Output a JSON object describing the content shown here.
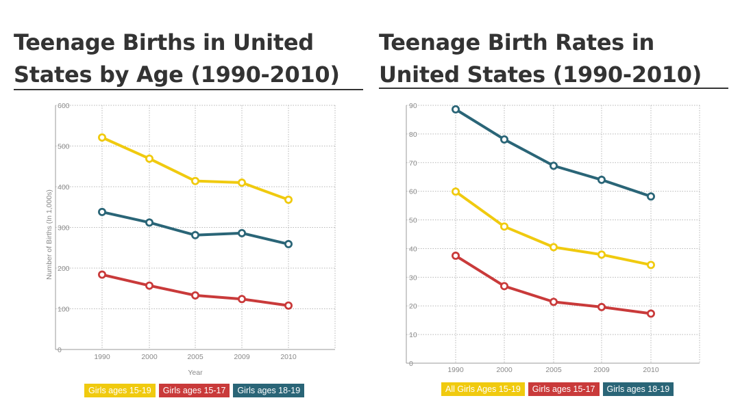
{
  "colors": {
    "yellow": "#F0CA0F",
    "red": "#C93A3A",
    "teal": "#2A6577"
  },
  "chart_data": [
    {
      "type": "line",
      "title": "Teenage Births in United States by Age (1990-2010)",
      "xlabel": "Year",
      "ylabel": "Number of Births (In 1,000s)",
      "categories": [
        "1990",
        "2000",
        "2005",
        "2009",
        "2010"
      ],
      "y_ticks": [
        "0",
        "100",
        "200",
        "300",
        "400",
        "500",
        "600"
      ],
      "ylim": [
        0,
        600
      ],
      "grid": true,
      "legend_position": "bottom",
      "series": [
        {
          "name": "Girls ages 15-19",
          "color": "#F0CA0F",
          "values": [
            521,
            469,
            414,
            410,
            368
          ]
        },
        {
          "name": "Girls ages 15-17",
          "color": "#C93A3A",
          "values": [
            184,
            157,
            133,
            124,
            108
          ]
        },
        {
          "name": "Girls ages 18-19",
          "color": "#2A6577",
          "values": [
            338,
            312,
            281,
            286,
            259
          ]
        }
      ]
    },
    {
      "type": "line",
      "title": "Teenage Birth Rates in United States (1990-2010)",
      "xlabel": "",
      "ylabel": "",
      "categories": [
        "1990",
        "2000",
        "2005",
        "2009",
        "2010"
      ],
      "y_ticks": [
        "0",
        "10",
        "20",
        "30",
        "40",
        "50",
        "60",
        "70",
        "80",
        "90"
      ],
      "ylim": [
        0,
        90
      ],
      "grid": true,
      "legend_position": "bottom",
      "series": [
        {
          "name": "All Girls Ages 15-19",
          "color": "#F0CA0F",
          "values": [
            59.9,
            47.7,
            40.5,
            37.9,
            34.3
          ]
        },
        {
          "name": "Girls ages 15-17",
          "color": "#C93A3A",
          "values": [
            37.5,
            26.9,
            21.4,
            19.6,
            17.3
          ]
        },
        {
          "name": "Girls ages 18-19",
          "color": "#2A6577",
          "values": [
            88.6,
            78.1,
            68.9,
            64.0,
            58.2
          ]
        }
      ]
    }
  ]
}
